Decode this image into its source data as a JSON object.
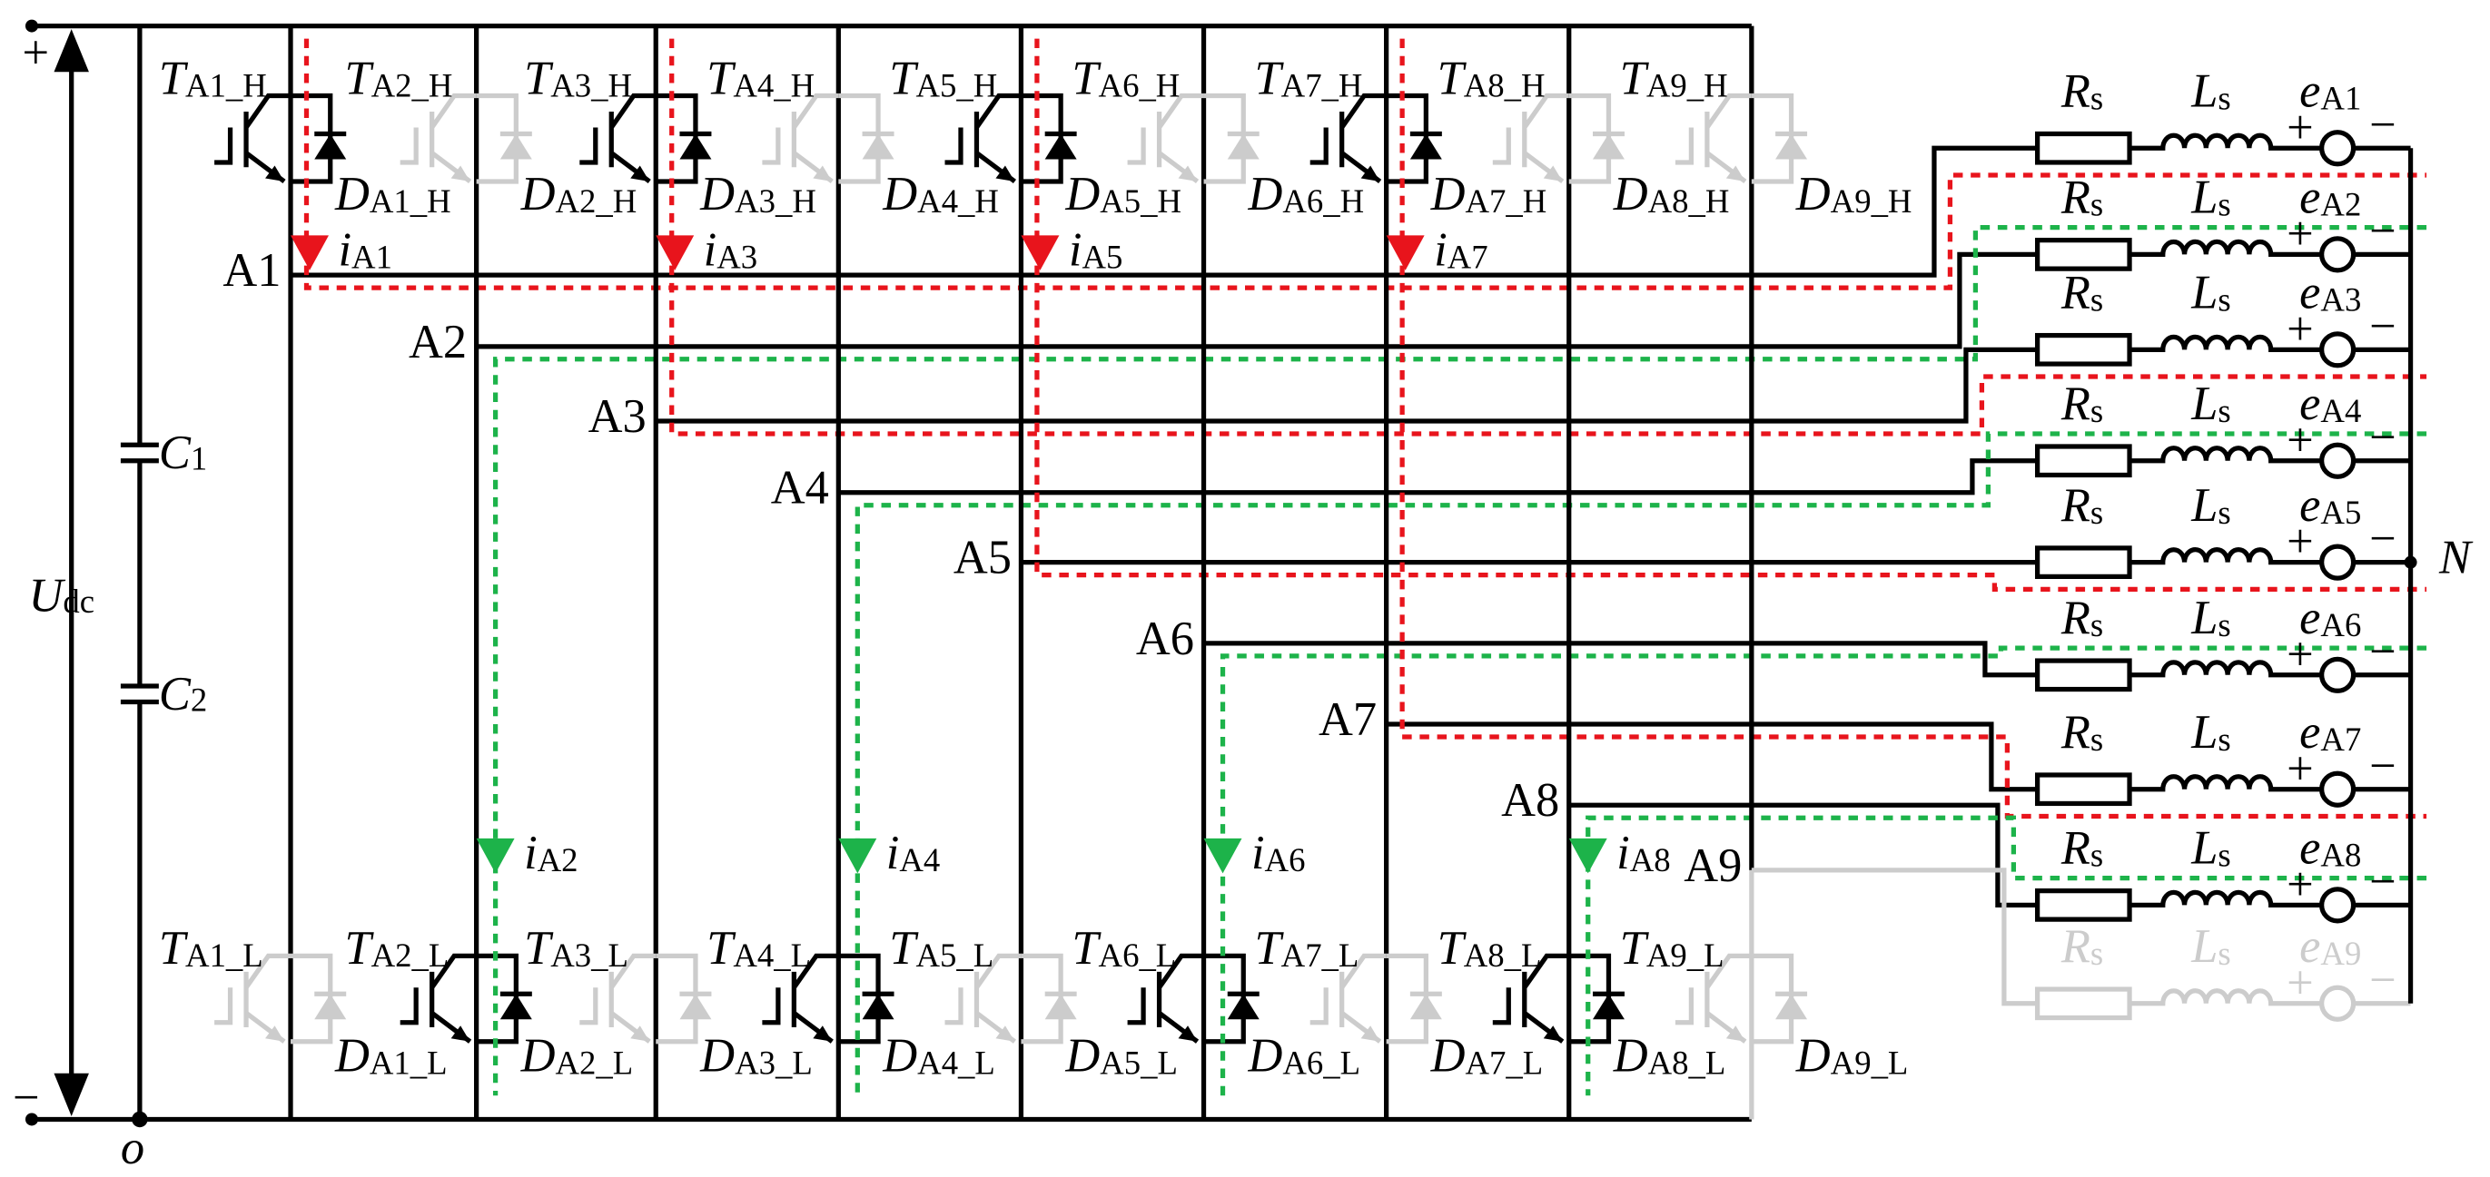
{
  "supply": {
    "plus": "+",
    "minus": "−",
    "voltage": {
      "main": "U",
      "sub": "dc"
    },
    "ground": "o"
  },
  "capacitors": [
    {
      "main": "C",
      "sub": "1"
    },
    {
      "main": "C",
      "sub": "2"
    }
  ],
  "legs": [
    {
      "node": "A1",
      "upper_switch": {
        "main": "T",
        "sub": "A1_H"
      },
      "upper_diode": {
        "main": "D",
        "sub": "A1_H"
      },
      "lower_switch": {
        "main": "T",
        "sub": "A1_L"
      },
      "lower_diode": {
        "main": "D",
        "sub": "A1_L"
      },
      "current": {
        "main": "i",
        "sub": "A1"
      }
    },
    {
      "node": "A2",
      "upper_switch": {
        "main": "T",
        "sub": "A2_H"
      },
      "upper_diode": {
        "main": "D",
        "sub": "A2_H"
      },
      "lower_switch": {
        "main": "T",
        "sub": "A2_L"
      },
      "lower_diode": {
        "main": "D",
        "sub": "A2_L"
      },
      "current": {
        "main": "i",
        "sub": "A2"
      }
    },
    {
      "node": "A3",
      "upper_switch": {
        "main": "T",
        "sub": "A3_H"
      },
      "upper_diode": {
        "main": "D",
        "sub": "A3_H"
      },
      "lower_switch": {
        "main": "T",
        "sub": "A3_L"
      },
      "lower_diode": {
        "main": "D",
        "sub": "A3_L"
      },
      "current": {
        "main": "i",
        "sub": "A3"
      }
    },
    {
      "node": "A4",
      "upper_switch": {
        "main": "T",
        "sub": "A4_H"
      },
      "upper_diode": {
        "main": "D",
        "sub": "A4_H"
      },
      "lower_switch": {
        "main": "T",
        "sub": "A4_L"
      },
      "lower_diode": {
        "main": "D",
        "sub": "A4_L"
      },
      "current": {
        "main": "i",
        "sub": "A4"
      }
    },
    {
      "node": "A5",
      "upper_switch": {
        "main": "T",
        "sub": "A5_H"
      },
      "upper_diode": {
        "main": "D",
        "sub": "A5_H"
      },
      "lower_switch": {
        "main": "T",
        "sub": "A5_L"
      },
      "lower_diode": {
        "main": "D",
        "sub": "A5_L"
      },
      "current": {
        "main": "i",
        "sub": "A5"
      }
    },
    {
      "node": "A6",
      "upper_switch": {
        "main": "T",
        "sub": "A6_H"
      },
      "upper_diode": {
        "main": "D",
        "sub": "A6_H"
      },
      "lower_switch": {
        "main": "T",
        "sub": "A6_L"
      },
      "lower_diode": {
        "main": "D",
        "sub": "A6_L"
      },
      "current": {
        "main": "i",
        "sub": "A6"
      }
    },
    {
      "node": "A7",
      "upper_switch": {
        "main": "T",
        "sub": "A7_H"
      },
      "upper_diode": {
        "main": "D",
        "sub": "A7_H"
      },
      "lower_switch": {
        "main": "T",
        "sub": "A7_L"
      },
      "lower_diode": {
        "main": "D",
        "sub": "A7_L"
      },
      "current": {
        "main": "i",
        "sub": "A7"
      }
    },
    {
      "node": "A8",
      "upper_switch": {
        "main": "T",
        "sub": "A8_H"
      },
      "upper_diode": {
        "main": "D",
        "sub": "A8_H"
      },
      "lower_switch": {
        "main": "T",
        "sub": "A8_L"
      },
      "lower_diode": {
        "main": "D",
        "sub": "A8_L"
      },
      "current": {
        "main": "i",
        "sub": "A8"
      }
    },
    {
      "node": "A9",
      "upper_switch": {
        "main": "T",
        "sub": "A9_H"
      },
      "upper_diode": {
        "main": "D",
        "sub": "A9_H"
      },
      "lower_switch": {
        "main": "T",
        "sub": "A9_L"
      },
      "lower_diode": {
        "main": "D",
        "sub": "A9_L"
      }
    }
  ],
  "loads": [
    {
      "resistor": {
        "main": "R",
        "sub": "s"
      },
      "inductor": {
        "main": "L",
        "sub": "s"
      },
      "source": {
        "main": "e",
        "sub": "A1"
      }
    },
    {
      "resistor": {
        "main": "R",
        "sub": "s"
      },
      "inductor": {
        "main": "L",
        "sub": "s"
      },
      "source": {
        "main": "e",
        "sub": "A2"
      }
    },
    {
      "resistor": {
        "main": "R",
        "sub": "s"
      },
      "inductor": {
        "main": "L",
        "sub": "s"
      },
      "source": {
        "main": "e",
        "sub": "A3"
      }
    },
    {
      "resistor": {
        "main": "R",
        "sub": "s"
      },
      "inductor": {
        "main": "L",
        "sub": "s"
      },
      "source": {
        "main": "e",
        "sub": "A4"
      }
    },
    {
      "resistor": {
        "main": "R",
        "sub": "s"
      },
      "inductor": {
        "main": "L",
        "sub": "s"
      },
      "source": {
        "main": "e",
        "sub": "A5"
      }
    },
    {
      "resistor": {
        "main": "R",
        "sub": "s"
      },
      "inductor": {
        "main": "L",
        "sub": "s"
      },
      "source": {
        "main": "e",
        "sub": "A6"
      }
    },
    {
      "resistor": {
        "main": "R",
        "sub": "s"
      },
      "inductor": {
        "main": "L",
        "sub": "s"
      },
      "source": {
        "main": "e",
        "sub": "A7"
      }
    },
    {
      "resistor": {
        "main": "R",
        "sub": "s"
      },
      "inductor": {
        "main": "L",
        "sub": "s"
      },
      "source": {
        "main": "e",
        "sub": "A8"
      }
    },
    {
      "resistor": {
        "main": "R",
        "sub": "s"
      },
      "inductor": {
        "main": "L",
        "sub": "s"
      },
      "source": {
        "main": "e",
        "sub": "A9"
      }
    }
  ],
  "load_sign": {
    "plus": "+",
    "minus": "−"
  },
  "neutral": "N"
}
